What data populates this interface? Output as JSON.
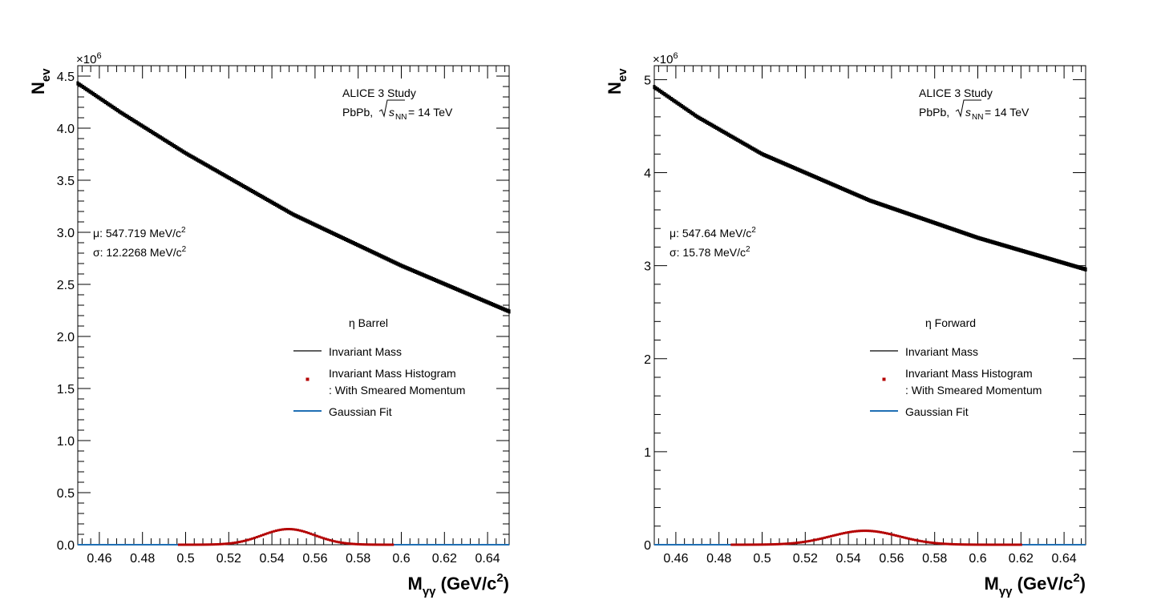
{
  "chart_data": [
    {
      "type": "line",
      "panel": "barrel",
      "xlabel_main": "M",
      "xlabel_sub": "γγ",
      "xlabel_units": " (GeV/c",
      "xlabel_units_sup": "2",
      "xlabel_units_close": ")",
      "ylabel_main": "N",
      "ylabel_sub": "ev",
      "y_exponent_prefix": "×10",
      "y_exponent_sup": "6",
      "xlim": [
        0.45,
        0.65
      ],
      "ylim": [
        0,
        4.6
      ],
      "x_ticks": [
        0.46,
        0.48,
        0.5,
        0.52,
        0.54,
        0.56,
        0.58,
        0.6,
        0.62,
        0.64
      ],
      "x_tick_labels": [
        "0.46",
        "0.48",
        "0.5",
        "0.52",
        "0.54",
        "0.56",
        "0.58",
        "0.6",
        "0.62",
        "0.64"
      ],
      "y_ticks": [
        0,
        0.5,
        1.0,
        1.5,
        2.0,
        2.5,
        3.0,
        3.5,
        4.0,
        4.5
      ],
      "y_tick_labels": [
        "0.0",
        "0.5",
        "1.0",
        "1.5",
        "2.0",
        "2.5",
        "3.0",
        "3.5",
        "4.0",
        "4.5"
      ],
      "title_line1": "ALICE 3 Study",
      "title_line2_prefix": "PbPb, ",
      "title_line2_sqrt": "s",
      "title_line2_sub": "NN",
      "title_line2_suffix": " = 14 TeV",
      "mu_label": "μ: 547.719 MeV/c",
      "sigma_label": "σ: 12.2268 MeV/c",
      "unit_sup": "2",
      "legend_header": "η Barrel",
      "legend_entries": [
        "Invariant Mass",
        "Invariant Mass Histogram",
        ": With Smeared Momentum",
        "Gaussian Fit"
      ],
      "series": [
        {
          "name": "Invariant Mass",
          "color": "#000000",
          "x": [
            0.45,
            0.47,
            0.5,
            0.55,
            0.6,
            0.65
          ],
          "values": [
            4.43,
            4.15,
            3.76,
            3.17,
            2.68,
            2.24
          ]
        },
        {
          "name": "Invariant Mass Histogram : With Smeared Momentum",
          "color": "#b40000",
          "range": [
            0.497,
            0.596
          ],
          "mu": 0.547719,
          "sigma": 0.0122268,
          "amplitude": 0.15
        },
        {
          "name": "Gaussian Fit",
          "color": "#1f6fb4",
          "range": [
            0.45,
            0.65
          ],
          "mu": 0.547719,
          "sigma": 0.0122268,
          "amplitude": 0.15
        }
      ]
    },
    {
      "type": "line",
      "panel": "forward",
      "xlabel_main": "M",
      "xlabel_sub": "γγ",
      "xlabel_units": " (GeV/c",
      "xlabel_units_sup": "2",
      "xlabel_units_close": ")",
      "ylabel_main": "N",
      "ylabel_sub": "ev",
      "y_exponent_prefix": "×10",
      "y_exponent_sup": "6",
      "xlim": [
        0.45,
        0.65
      ],
      "ylim": [
        0,
        5.15
      ],
      "x_ticks": [
        0.46,
        0.48,
        0.5,
        0.52,
        0.54,
        0.56,
        0.58,
        0.6,
        0.62,
        0.64
      ],
      "x_tick_labels": [
        "0.46",
        "0.48",
        "0.5",
        "0.52",
        "0.54",
        "0.56",
        "0.58",
        "0.6",
        "0.62",
        "0.64"
      ],
      "y_ticks": [
        0,
        1,
        2,
        3,
        4,
        5
      ],
      "y_tick_labels": [
        "0",
        "1",
        "2",
        "3",
        "4",
        "5"
      ],
      "title_line1": "ALICE 3 Study",
      "title_line2_prefix": "PbPb, ",
      "title_line2_sqrt": "s",
      "title_line2_sub": "NN",
      "title_line2_suffix": " = 14 TeV",
      "mu_label": "μ: 547.64 MeV/c",
      "sigma_label": "σ: 15.78 MeV/c",
      "unit_sup": "2",
      "legend_header": "η Forward",
      "legend_entries": [
        "Invariant Mass",
        "Invariant Mass Histogram",
        ": With Smeared Momentum",
        "Gaussian Fit"
      ],
      "series": [
        {
          "name": "Invariant Mass",
          "color": "#000000",
          "x": [
            0.45,
            0.47,
            0.5,
            0.55,
            0.6,
            0.65
          ],
          "values": [
            4.92,
            4.6,
            4.2,
            3.7,
            3.3,
            2.96
          ]
        },
        {
          "name": "Invariant Mass Histogram : With Smeared Momentum",
          "color": "#b40000",
          "range": [
            0.486,
            0.62
          ],
          "mu": 0.54764,
          "sigma": 0.01578,
          "amplitude": 0.15
        },
        {
          "name": "Gaussian Fit",
          "color": "#1f6fb4",
          "range": [
            0.45,
            0.65
          ],
          "mu": 0.54764,
          "sigma": 0.01578,
          "amplitude": 0.15
        }
      ]
    }
  ]
}
